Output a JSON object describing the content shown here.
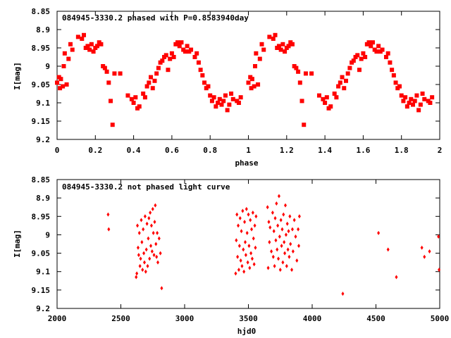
{
  "chart_data": [
    {
      "type": "scatter",
      "title": "084945-3330.2 phased with P=0.8583940day",
      "xlabel": "phase",
      "ylabel": "I[mag]",
      "xlim": [
        0,
        2
      ],
      "ylim": [
        9.2,
        8.85
      ],
      "y_inverted": true,
      "grid": false,
      "marker": "square",
      "color": "#ff0000",
      "x_ticks": [
        "0",
        "0.2",
        "0.4",
        "0.6",
        "0.8",
        "1",
        "1.2",
        "1.4",
        "1.6",
        "1.8",
        "2"
      ],
      "y_ticks": [
        "8.85",
        "8.9",
        "8.95",
        "9",
        "9.05",
        "9.1",
        "9.15",
        "9.2"
      ],
      "series": [
        {
          "points": [
            [
              0.0,
              9.045
            ],
            [
              0.01,
              9.03
            ],
            [
              0.015,
              9.06
            ],
            [
              0.02,
              9.035
            ],
            [
              0.03,
              9.055
            ],
            [
              0.035,
              9.0
            ],
            [
              0.04,
              8.965
            ],
            [
              0.05,
              9.05
            ],
            [
              0.06,
              8.98
            ],
            [
              0.07,
              8.94
            ],
            [
              0.08,
              8.955
            ],
            [
              0.11,
              8.92
            ],
            [
              0.13,
              8.925
            ],
            [
              0.14,
              8.915
            ],
            [
              0.15,
              8.95
            ],
            [
              0.16,
              8.945
            ],
            [
              0.17,
              8.955
            ],
            [
              0.18,
              8.94
            ],
            [
              0.19,
              8.96
            ],
            [
              0.2,
              8.95
            ],
            [
              0.21,
              8.945
            ],
            [
              0.22,
              8.935
            ],
            [
              0.23,
              8.94
            ],
            [
              0.24,
              9.0
            ],
            [
              0.25,
              9.005
            ],
            [
              0.26,
              9.015
            ],
            [
              0.27,
              9.045
            ],
            [
              0.28,
              9.095
            ],
            [
              0.29,
              9.16
            ],
            [
              0.3,
              9.02
            ],
            [
              0.33,
              9.02
            ],
            [
              0.37,
              9.08
            ],
            [
              0.39,
              9.09
            ],
            [
              0.4,
              9.1
            ],
            [
              0.41,
              9.085
            ],
            [
              0.42,
              9.115
            ],
            [
              0.43,
              9.11
            ],
            [
              0.45,
              9.075
            ],
            [
              0.46,
              9.085
            ],
            [
              0.47,
              9.055
            ],
            [
              0.48,
              9.045
            ],
            [
              0.49,
              9.03
            ],
            [
              0.5,
              9.06
            ],
            [
              0.51,
              9.04
            ],
            [
              0.52,
              9.02
            ],
            [
              0.53,
              9.005
            ],
            [
              0.54,
              8.99
            ],
            [
              0.55,
              8.985
            ],
            [
              0.56,
              8.975
            ],
            [
              0.57,
              8.97
            ],
            [
              0.58,
              9.01
            ],
            [
              0.59,
              8.98
            ],
            [
              0.6,
              8.965
            ],
            [
              0.61,
              8.975
            ],
            [
              0.62,
              8.94
            ],
            [
              0.63,
              8.935
            ],
            [
              0.64,
              8.945
            ],
            [
              0.65,
              8.935
            ],
            [
              0.66,
              8.955
            ],
            [
              0.67,
              8.96
            ],
            [
              0.68,
              8.945
            ],
            [
              0.69,
              8.96
            ],
            [
              0.7,
              8.955
            ],
            [
              0.72,
              8.975
            ],
            [
              0.73,
              8.965
            ],
            [
              0.74,
              8.99
            ],
            [
              0.75,
              9.01
            ],
            [
              0.76,
              9.025
            ],
            [
              0.77,
              9.045
            ],
            [
              0.78,
              9.06
            ],
            [
              0.79,
              9.055
            ],
            [
              0.8,
              9.08
            ],
            [
              0.81,
              9.095
            ],
            [
              0.82,
              9.085
            ],
            [
              0.83,
              9.11
            ],
            [
              0.84,
              9.1
            ],
            [
              0.85,
              9.09
            ],
            [
              0.86,
              9.105
            ],
            [
              0.87,
              9.095
            ],
            [
              0.88,
              9.08
            ],
            [
              0.89,
              9.12
            ],
            [
              0.9,
              9.105
            ],
            [
              0.91,
              9.075
            ],
            [
              0.92,
              9.09
            ],
            [
              0.94,
              9.095
            ],
            [
              0.95,
              9.1
            ],
            [
              0.96,
              9.085
            ]
          ]
        }
      ]
    },
    {
      "type": "scatter",
      "title": "084945-3330.2 not phased light curve",
      "xlabel": "hjd0",
      "ylabel": "I[mag]",
      "xlim": [
        2000,
        5000
      ],
      "ylim": [
        9.2,
        8.85
      ],
      "y_inverted": true,
      "grid": false,
      "marker": "diamond",
      "color": "#ff0000",
      "x_ticks": [
        "2000",
        "2500",
        "3000",
        "3500",
        "4000",
        "4500",
        "5000"
      ],
      "y_ticks": [
        "8.85",
        "8.9",
        "8.95",
        "9",
        "9.05",
        "9.1",
        "9.15",
        "9.2"
      ],
      "series": [
        {
          "points": [
            [
              2400,
              8.945
            ],
            [
              2405,
              8.985
            ],
            [
              2620,
              9.115
            ],
            [
              2625,
              9.105
            ],
            [
              2630,
              8.975
            ],
            [
              2635,
              9.035
            ],
            [
              2640,
              9.055
            ],
            [
              2645,
              8.995
            ],
            [
              2650,
              9.085
            ],
            [
              2655,
              9.065
            ],
            [
              2660,
              8.96
            ],
            [
              2665,
              9.02
            ],
            [
              2670,
              9.095
            ],
            [
              2675,
              8.985
            ],
            [
              2680,
              9.05
            ],
            [
              2685,
              9.075
            ],
            [
              2690,
              8.95
            ],
            [
              2695,
              9.1
            ],
            [
              2700,
              9.04
            ],
            [
              2705,
              8.97
            ],
            [
              2710,
              9.085
            ],
            [
              2715,
              9.01
            ],
            [
              2720,
              8.955
            ],
            [
              2725,
              9.065
            ],
            [
              2730,
              8.94
            ],
            [
              2735,
              9.03
            ],
            [
              2740,
              8.975
            ],
            [
              2745,
              9.045
            ],
            [
              2750,
              8.93
            ],
            [
              2755,
              8.995
            ],
            [
              2760,
              9.055
            ],
            [
              2765,
              8.965
            ],
            [
              2770,
              8.92
            ],
            [
              2775,
              9.025
            ],
            [
              2780,
              9.06
            ],
            [
              2785,
              8.995
            ],
            [
              2790,
              9.075
            ],
            [
              2800,
              9.01
            ],
            [
              2810,
              9.05
            ],
            [
              2820,
              9.145
            ],
            [
              3400,
              9.105
            ],
            [
              3405,
              9.015
            ],
            [
              3410,
              8.945
            ],
            [
              3415,
              9.06
            ],
            [
              3420,
              8.975
            ],
            [
              3425,
              9.095
            ],
            [
              3430,
              9.03
            ],
            [
              3435,
              8.955
            ],
            [
              3440,
              9.07
            ],
            [
              3445,
              8.99
            ],
            [
              3450,
              9.085
            ],
            [
              3455,
              8.935
            ],
            [
              3460,
              9.04
            ],
            [
              3465,
              9.1
            ],
            [
              3470,
              8.965
            ],
            [
              3475,
              9.02
            ],
            [
              3480,
              9.055
            ],
            [
              3485,
              8.93
            ],
            [
              3490,
              8.995
            ],
            [
              3495,
              9.075
            ],
            [
              3500,
              8.945
            ],
            [
              3505,
              9.03
            ],
            [
              3510,
              9.09
            ],
            [
              3515,
              8.96
            ],
            [
              3520,
              9.05
            ],
            [
              3525,
              8.985
            ],
            [
              3530,
              9.065
            ],
            [
              3535,
              8.94
            ],
            [
              3540,
              9.01
            ],
            [
              3545,
              9.08
            ],
            [
              3550,
              8.975
            ],
            [
              3555,
              9.035
            ],
            [
              3560,
              8.95
            ],
            [
              3650,
              8.925
            ],
            [
              3655,
              9.09
            ],
            [
              3660,
              8.965
            ],
            [
              3665,
              9.02
            ],
            [
              3670,
              8.98
            ],
            [
              3680,
              9.045
            ],
            [
              3690,
              8.94
            ],
            [
              3695,
              9.06
            ],
            [
              3700,
              8.99
            ],
            [
              3705,
              9.085
            ],
            [
              3710,
              8.955
            ],
            [
              3715,
              9.015
            ],
            [
              3720,
              8.915
            ],
            [
              3725,
              9.04
            ],
            [
              3730,
              8.975
            ],
            [
              3735,
              9.065
            ],
            [
              3740,
              8.895
            ],
            [
              3745,
              9.005
            ],
            [
              3750,
              9.095
            ],
            [
              3755,
              8.96
            ],
            [
              3760,
              9.03
            ],
            [
              3765,
              8.985
            ],
            [
              3770,
              9.075
            ],
            [
              3775,
              8.945
            ],
            [
              3780,
              9.02
            ],
            [
              3785,
              9.05
            ],
            [
              3790,
              8.92
            ],
            [
              3795,
              9.0
            ],
            [
              3800,
              9.085
            ],
            [
              3805,
              8.97
            ],
            [
              3810,
              9.04
            ],
            [
              3815,
              8.99
            ],
            [
              3820,
              9.06
            ],
            [
              3825,
              8.95
            ],
            [
              3830,
              9.025
            ],
            [
              3840,
              9.095
            ],
            [
              3845,
              8.985
            ],
            [
              3850,
              9.045
            ],
            [
              3860,
              8.96
            ],
            [
              3870,
              9.005
            ],
            [
              3880,
              9.07
            ],
            [
              3890,
              8.985
            ],
            [
              3895,
              9.03
            ],
            [
              3900,
              8.95
            ],
            [
              4240,
              9.16
            ],
            [
              4520,
              8.995
            ],
            [
              4595,
              9.04
            ],
            [
              4660,
              9.115
            ],
            [
              4860,
              9.035
            ],
            [
              4880,
              9.06
            ],
            [
              4920,
              9.045
            ],
            [
              4990,
              9.005
            ],
            [
              4995,
              9.095
            ]
          ]
        }
      ]
    }
  ]
}
